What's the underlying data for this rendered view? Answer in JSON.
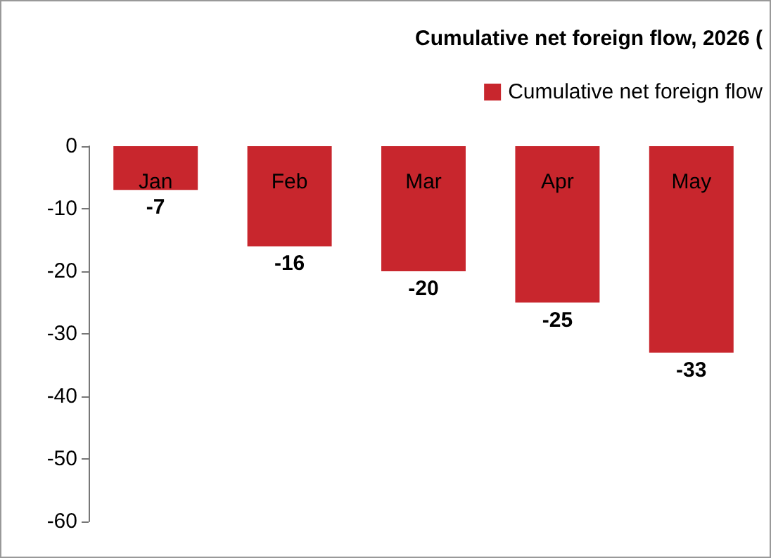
{
  "chart_data": {
    "type": "bar",
    "title": "Cumulative net foreign flow, 2026 (",
    "categories": [
      "Jan",
      "Feb",
      "Mar",
      "Apr",
      "May"
    ],
    "series": [
      {
        "name": "Cumulative net foreign flow",
        "color": "#c8262d",
        "values": [
          -7,
          -16,
          -20,
          -25,
          -33
        ]
      }
    ],
    "ylim": [
      -60,
      0
    ],
    "yticks": [
      -60,
      -50,
      -40,
      -30,
      -20,
      -10,
      0
    ],
    "data_labels": true,
    "grid": false,
    "legend": "top right"
  }
}
